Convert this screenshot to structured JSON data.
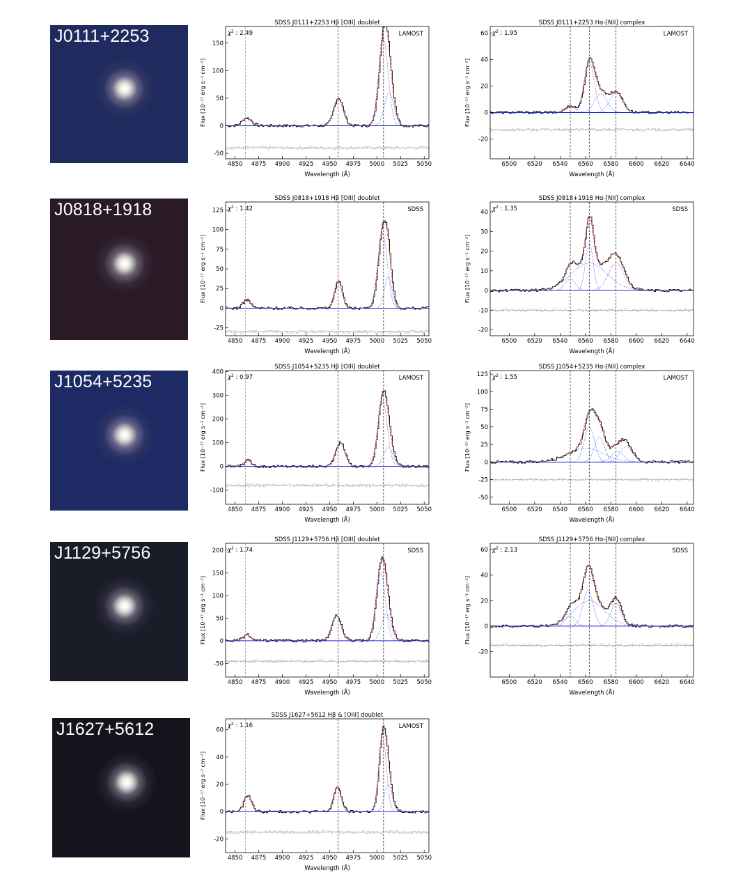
{
  "objects": [
    {
      "name": "J0111+2253",
      "thumb_bg": "#1f2b5e"
    },
    {
      "name": "J0818+1918",
      "thumb_bg": "#2a1a26"
    },
    {
      "name": "J1054+5235",
      "thumb_bg": "#1e2a63"
    },
    {
      "name": "J1129+5756",
      "thumb_bg": "#1a1c28"
    },
    {
      "name": "J1627+5612",
      "thumb_bg": "#14151c"
    }
  ],
  "chart_data": [
    {
      "type": "line",
      "title": "SDSS J0111+2253 Hβ [OIII] doublet",
      "tag": "LAMOST",
      "chi2": "2.49",
      "xlabel": "Wavelength (Å)",
      "ylabel": "Flux [10⁻¹⁷ erg s⁻¹ cm⁻²]",
      "xlim": [
        4840,
        5055
      ],
      "xticks": [
        4850,
        4875,
        4900,
        4925,
        4950,
        4975,
        5000,
        5025,
        5050
      ],
      "ylim": [
        -60,
        180
      ],
      "yticks": [
        -50,
        0,
        50,
        100,
        150
      ],
      "vlines": [
        4861,
        4959,
        5007
      ],
      "residual_offset": -40,
      "lines": [
        {
          "c": 4862,
          "a": 14,
          "w": 5
        },
        {
          "c": 4959,
          "a": 50,
          "w": 5
        },
        {
          "c": 5007,
          "a": 155,
          "w": 5
        },
        {
          "c": 5013,
          "a": 60,
          "w": 5
        }
      ]
    },
    {
      "type": "line",
      "title": "SDSS J0111+2253 Hα-[NII] complex",
      "tag": "LAMOST",
      "chi2": "1.95",
      "xlabel": "Wavelength (Å)",
      "ylabel": "Flux [10⁻¹⁷ erg s⁻¹ cm⁻²]",
      "xlim": [
        6485,
        6645
      ],
      "xticks": [
        6500,
        6520,
        6540,
        6560,
        6580,
        6600,
        6620,
        6640
      ],
      "ylim": [
        -35,
        65
      ],
      "yticks": [
        -20,
        0,
        20,
        40,
        60
      ],
      "vlines": [
        6548,
        6563,
        6584
      ],
      "residual_offset": -13,
      "lines": [
        {
          "c": 6563,
          "a": 38,
          "w": 4
        },
        {
          "c": 6548,
          "a": 5,
          "w": 4
        },
        {
          "c": 6584,
          "a": 15,
          "w": 5
        },
        {
          "c": 6572,
          "a": 14,
          "w": 5
        }
      ]
    },
    {
      "type": "line",
      "title": "SDSS J0818+1918 Hβ [OIII] doublet",
      "tag": "SDSS",
      "chi2": "1.42",
      "xlabel": "Wavelength (Å)",
      "ylabel": "Flux [10⁻¹⁷ erg s⁻¹ cm⁻²]",
      "xlim": [
        4840,
        5055
      ],
      "xticks": [
        4850,
        4875,
        4900,
        4925,
        4950,
        4975,
        5000,
        5025,
        5050
      ],
      "ylim": [
        -35,
        135
      ],
      "yticks": [
        -25,
        0,
        25,
        50,
        75,
        100,
        125
      ],
      "vlines": [
        4861,
        4959,
        5007
      ],
      "residual_offset": -30,
      "lines": [
        {
          "c": 4862,
          "a": 11,
          "w": 4
        },
        {
          "c": 4959,
          "a": 35,
          "w": 4
        },
        {
          "c": 5006,
          "a": 95,
          "w": 5
        },
        {
          "c": 5012,
          "a": 40,
          "w": 4
        }
      ]
    },
    {
      "type": "line",
      "title": "SDSS J0818+1918 Hα-[NII] complex",
      "tag": "SDSS",
      "chi2": "1.35",
      "xlabel": "Wavelength (Å)",
      "ylabel": "Flux [10⁻¹⁷ erg s⁻¹ cm⁻²]",
      "xlim": [
        6485,
        6645
      ],
      "xticks": [
        6500,
        6520,
        6540,
        6560,
        6580,
        6600,
        6620,
        6640
      ],
      "ylim": [
        -23,
        45
      ],
      "yticks": [
        -20,
        -10,
        0,
        10,
        20,
        30,
        40
      ],
      "vlines": [
        6548,
        6563,
        6584
      ],
      "residual_offset": -10,
      "lines": [
        {
          "c": 6563,
          "a": 24,
          "w": 3
        },
        {
          "c": 6563,
          "a": 14,
          "w": 14
        },
        {
          "c": 6548,
          "a": 6,
          "w": 4
        },
        {
          "c": 6584,
          "a": 14,
          "w": 6
        }
      ]
    },
    {
      "type": "line",
      "title": "SDSS J1054+5235 Hβ [OIII] doublet",
      "tag": "LAMOST",
      "chi2": "0.97",
      "xlabel": "Wavelength (Å)",
      "ylabel": "Flux [10⁻¹⁷ erg s⁻¹ cm⁻²]",
      "xlim": [
        4840,
        5055
      ],
      "xticks": [
        4850,
        4875,
        4900,
        4925,
        4950,
        4975,
        5000,
        5025,
        5050
      ],
      "ylim": [
        -160,
        405
      ],
      "yticks": [
        -100,
        0,
        100,
        200,
        300,
        400
      ],
      "vlines": [
        4861,
        4959,
        5007
      ],
      "residual_offset": -80,
      "lines": [
        {
          "c": 4863,
          "a": 25,
          "w": 4
        },
        {
          "c": 4961,
          "a": 100,
          "w": 5
        },
        {
          "c": 5006,
          "a": 280,
          "w": 5
        },
        {
          "c": 5012,
          "a": 80,
          "w": 5
        }
      ]
    },
    {
      "type": "line",
      "title": "SDSS J1054+5235 Hα-[NII] complex",
      "tag": "LAMOST",
      "chi2": "1.55",
      "xlabel": "Wavelength (Å)",
      "ylabel": "Flux [10⁻¹⁷ erg s⁻¹ cm⁻²]",
      "xlim": [
        6485,
        6645
      ],
      "xticks": [
        6500,
        6520,
        6540,
        6560,
        6580,
        6600,
        6620,
        6640
      ],
      "ylim": [
        -60,
        130
      ],
      "yticks": [
        -50,
        -25,
        0,
        25,
        50,
        75,
        100,
        125
      ],
      "vlines": [
        6548,
        6563,
        6584
      ],
      "residual_offset": -25,
      "lines": [
        {
          "c": 6563,
          "a": 50,
          "w": 4
        },
        {
          "c": 6560,
          "a": 20,
          "w": 14
        },
        {
          "c": 6571,
          "a": 35,
          "w": 4
        },
        {
          "c": 6592,
          "a": 22,
          "w": 5
        },
        {
          "c": 6585,
          "a": 15,
          "w": 5
        }
      ]
    },
    {
      "type": "line",
      "title": "SDSS J1129+5756 Hβ [OIII] doublet",
      "tag": "SDSS",
      "chi2": "1.74",
      "xlabel": "Wavelength (Å)",
      "ylabel": "Flux [10⁻¹⁷ erg s⁻¹ cm⁻²]",
      "xlim": [
        4840,
        5055
      ],
      "xticks": [
        4850,
        4875,
        4900,
        4925,
        4950,
        4975,
        5000,
        5025,
        5050
      ],
      "ylim": [
        -80,
        215
      ],
      "yticks": [
        -50,
        0,
        50,
        100,
        150,
        200
      ],
      "vlines": [
        4861,
        4959,
        5007
      ],
      "residual_offset": -45,
      "lines": [
        {
          "c": 4862,
          "a": 13,
          "w": 4
        },
        {
          "c": 4957,
          "a": 55,
          "w": 5
        },
        {
          "c": 5004,
          "a": 150,
          "w": 5
        },
        {
          "c": 5010,
          "a": 60,
          "w": 5
        }
      ]
    },
    {
      "type": "line",
      "title": "SDSS J1129+5756 Hα-[NII] complex",
      "tag": "SDSS",
      "chi2": "2.13",
      "xlabel": "Wavelength (Å)",
      "ylabel": "Flux [10⁻¹⁷ erg s⁻¹ cm⁻²]",
      "xlim": [
        6485,
        6645
      ],
      "xticks": [
        6500,
        6520,
        6540,
        6560,
        6580,
        6600,
        6620,
        6640
      ],
      "ylim": [
        -40,
        65
      ],
      "yticks": [
        -20,
        0,
        20,
        40,
        60
      ],
      "vlines": [
        6548,
        6563,
        6584
      ],
      "residual_offset": -15,
      "lines": [
        {
          "c": 6562,
          "a": 28,
          "w": 4
        },
        {
          "c": 6563,
          "a": 20,
          "w": 12
        },
        {
          "c": 6548,
          "a": 8,
          "w": 4
        },
        {
          "c": 6584,
          "a": 18,
          "w": 4
        }
      ]
    },
    {
      "type": "line",
      "title": "SDSS J1627+5612 Hβ & [OIII] doublet",
      "tag": "LAMOST",
      "chi2": "1.16",
      "xlabel": "Wavelength (Å)",
      "ylabel": "Flux [10⁻¹⁷ erg s⁻¹ cm⁻²]",
      "xlim": [
        4840,
        5055
      ],
      "xticks": [
        4850,
        4875,
        4900,
        4925,
        4950,
        4975,
        5000,
        5025,
        5050
      ],
      "ylim": [
        -30,
        68
      ],
      "yticks": [
        -20,
        0,
        20,
        40,
        60
      ],
      "vlines": [
        4861,
        4959,
        5007
      ],
      "residual_offset": -15,
      "lines": [
        {
          "c": 4863,
          "a": 12,
          "w": 4
        },
        {
          "c": 4958,
          "a": 18,
          "w": 4
        },
        {
          "c": 5006,
          "a": 55,
          "w": 4
        },
        {
          "c": 5012,
          "a": 20,
          "w": 4
        }
      ]
    }
  ]
}
